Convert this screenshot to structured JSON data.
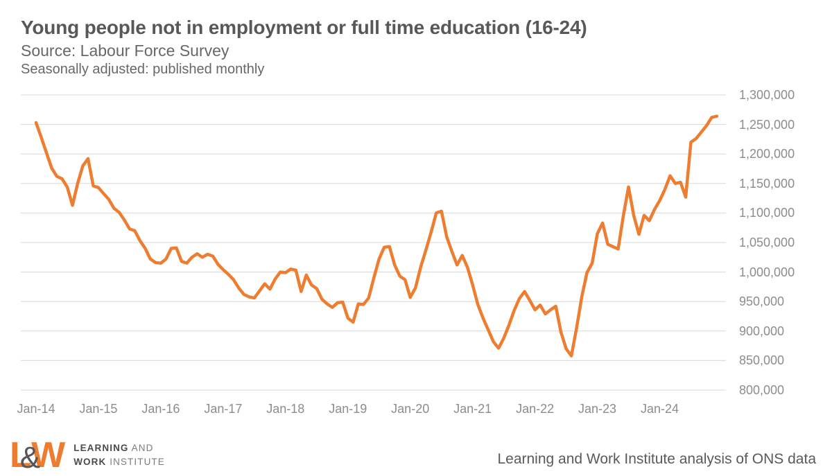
{
  "title": "Young people not in employment or full time education (16-24)",
  "subtitle": "Source: Labour Force Survey",
  "note": "Seasonally adjusted: published monthly",
  "footer": {
    "logo": {
      "letter_l": "L",
      "ampersand": "&",
      "letter_w": "W",
      "line1_bold": "LEARNING",
      "line1_light": "AND",
      "line2_bold": "WORK",
      "line2_light": "INSTITUTE"
    },
    "attribution": "Learning and Work Institute analysis of ONS data"
  },
  "colors": {
    "line": "#ED7D31",
    "grid": "#D8D8D8",
    "title_text": "#57585A",
    "subtitle_text": "#66676A",
    "axis_text": "#8B8C8E",
    "logo_orange": "#ED7C2E",
    "logo_gray": "#54565A"
  },
  "chart_data": {
    "type": "line",
    "series_name": "Young people not in employment or full time education (16-24)",
    "frequency": "monthly",
    "x_start": "Jan-14",
    "x_end": "Dec-24",
    "x_tick_labels": [
      "Jan-14",
      "Jan-15",
      "Jan-16",
      "Jan-17",
      "Jan-18",
      "Jan-19",
      "Jan-20",
      "Jan-21",
      "Jan-22",
      "Jan-23",
      "Jan-24"
    ],
    "x_tick_month_indices": [
      0,
      12,
      24,
      36,
      48,
      60,
      72,
      84,
      96,
      108,
      120
    ],
    "y_ticks": [
      800000,
      850000,
      900000,
      950000,
      1000000,
      1050000,
      1100000,
      1150000,
      1200000,
      1250000,
      1300000
    ],
    "ylim": [
      800000,
      1300000
    ],
    "grid": "horizontal",
    "legend_position": "none",
    "values": [
      1253000,
      1228000,
      1202000,
      1176000,
      1162000,
      1158000,
      1144000,
      1113000,
      1150000,
      1180000,
      1192000,
      1146000,
      1143000,
      1133000,
      1123000,
      1108000,
      1101000,
      1088000,
      1073000,
      1070000,
      1053000,
      1040000,
      1022000,
      1016000,
      1015000,
      1022000,
      1040000,
      1041000,
      1018000,
      1015000,
      1025000,
      1031000,
      1025000,
      1030000,
      1027000,
      1013000,
      1004000,
      996000,
      987000,
      973000,
      962000,
      958000,
      956000,
      968000,
      980000,
      971000,
      988000,
      1000000,
      999000,
      1005000,
      1003000,
      967000,
      995000,
      978000,
      972000,
      954000,
      946000,
      940000,
      948000,
      949000,
      922000,
      915000,
      946000,
      945000,
      956000,
      990000,
      1022000,
      1042000,
      1043000,
      1012000,
      993000,
      987000,
      957000,
      973000,
      1008000,
      1037000,
      1067000,
      1100000,
      1103000,
      1060000,
      1035000,
      1012000,
      1028000,
      1008000,
      978000,
      945000,
      922000,
      902000,
      882000,
      871000,
      888000,
      910000,
      935000,
      955000,
      967000,
      952000,
      936000,
      944000,
      929000,
      936000,
      942000,
      898000,
      870000,
      858000,
      905000,
      958000,
      999000,
      1015000,
      1065000,
      1083000,
      1047000,
      1043000,
      1039000,
      1095000,
      1144000,
      1096000,
      1064000,
      1096000,
      1087000,
      1106000,
      1121000,
      1140000,
      1163000,
      1150000,
      1152000,
      1127000,
      1220000,
      1226000,
      1237000,
      1248000,
      1262000,
      1264000
    ]
  }
}
